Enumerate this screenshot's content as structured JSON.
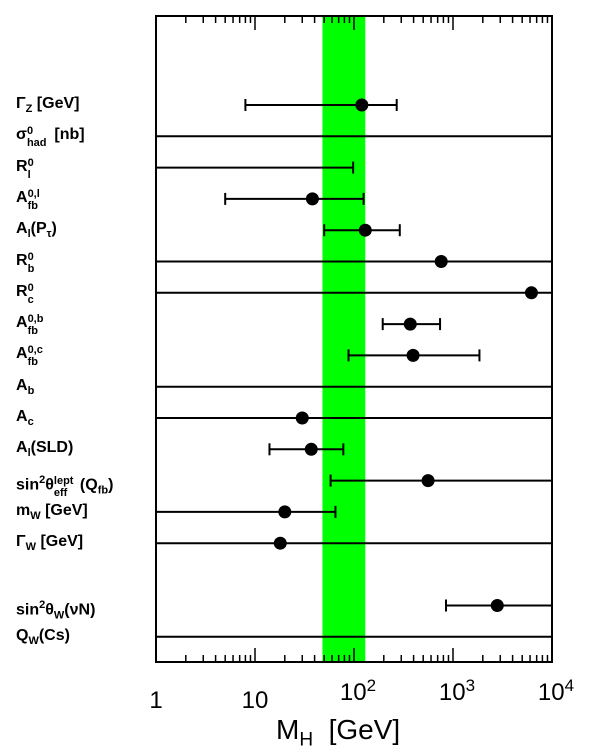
{
  "chart_data": {
    "type": "scatter",
    "xscale": "log",
    "xlim": [
      1,
      10000
    ],
    "xlabel": "M_H [GeV]",
    "xlabel_main": "M",
    "xlabel_sub": "H",
    "xlabel_unit": "[GeV]",
    "x_ticks": [
      {
        "value": 1,
        "label": "1",
        "sup": ""
      },
      {
        "value": 10,
        "label": "10",
        "sup": ""
      },
      {
        "value": 100,
        "label": "10",
        "sup": "2"
      },
      {
        "value": 1000,
        "label": "10",
        "sup": "3"
      },
      {
        "value": 10000,
        "label": "10",
        "sup": "4"
      }
    ],
    "band": {
      "low": 48,
      "high": 130,
      "color": "#00ff00"
    },
    "measurements": [
      {
        "label": "ΓZ [GeV]",
        "central": 120,
        "low": 8,
        "high": 270
      },
      {
        "label": "σ0had [nb]",
        "central": null,
        "low": 1,
        "high": 10000
      },
      {
        "label": "R0l",
        "central": null,
        "low": 1,
        "high": 98
      },
      {
        "label": "A0,lfb",
        "central": 38,
        "low": 5,
        "high": 125
      },
      {
        "label": "Al(Pτ)",
        "central": 130,
        "low": 50,
        "high": 290
      },
      {
        "label": "R0b",
        "central": 760,
        "low": 1,
        "high": 10000
      },
      {
        "label": "R0c",
        "central": 6200,
        "low": 1,
        "high": 10000
      },
      {
        "label": "A0,bfb",
        "central": 370,
        "low": 195,
        "high": 740
      },
      {
        "label": "A0,cfb",
        "central": 395,
        "low": 88,
        "high": 1850
      },
      {
        "label": "Ab",
        "central": null,
        "low": 1,
        "high": 10000
      },
      {
        "label": "Ac",
        "central": 30,
        "low": 1,
        "high": 10000
      },
      {
        "label": "Al(SLD)",
        "central": 37,
        "low": 14,
        "high": 78
      },
      {
        "label": "sin2θlepteff(Qfb)",
        "central": 560,
        "low": 58,
        "high": 10000
      },
      {
        "label": "mW [GeV]",
        "central": 20,
        "low": 1,
        "high": 65
      },
      {
        "label": "ΓW [GeV]",
        "central": 18,
        "low": 1,
        "high": 10000
      },
      {
        "label": "sin2θW(νN)",
        "central": 2800,
        "low": 850,
        "high": 10000
      },
      {
        "label": "QW(Cs)",
        "central": null,
        "low": 1,
        "high": 10000
      }
    ],
    "grid": false,
    "legend": "none"
  },
  "row_labels": [
    {
      "main": "Γ",
      "sub": "Z",
      "rest": " [GeV]"
    },
    {
      "main": "σ",
      "sup": "0",
      "sub": "had",
      "rest": " [nb]"
    },
    {
      "main": "R",
      "sup": "0",
      "sub": "l",
      "rest": ""
    },
    {
      "main": "A",
      "sup": "0,l",
      "sub": "fb",
      "rest": ""
    },
    {
      "main": "A",
      "sub": "l",
      "rest": "(P",
      "sub2": "τ",
      "rest2": ")"
    },
    {
      "main": "R",
      "sup": "0",
      "sub": "b",
      "rest": ""
    },
    {
      "main": "R",
      "sup": "0",
      "sub": "c",
      "rest": ""
    },
    {
      "main": "A",
      "sup": "0,b",
      "sub": "fb",
      "rest": ""
    },
    {
      "main": "A",
      "sup": "0,c",
      "sub": "fb",
      "rest": ""
    },
    {
      "main": "A",
      "sub": "b",
      "rest": ""
    },
    {
      "main": "A",
      "sub": "c",
      "rest": ""
    },
    {
      "main": "A",
      "sub": "l",
      "rest": "(SLD)"
    },
    {
      "main": "sin",
      "sup": "2",
      "rest": "θ",
      "sup2": "lept",
      "sub2": "eff",
      "rest2": "(Q",
      "sub3": "fb",
      "rest3": ")"
    },
    {
      "main": "m",
      "sub": "W",
      "rest": " [GeV]"
    },
    {
      "main": "Γ",
      "sub": "W",
      "rest": " [GeV]"
    },
    {
      "main": "sin",
      "sup": "2",
      "rest": "θ",
      "sub2": "W",
      "rest2": "(νN)"
    },
    {
      "main": "Q",
      "sub": "W",
      "rest": "(Cs)"
    }
  ]
}
